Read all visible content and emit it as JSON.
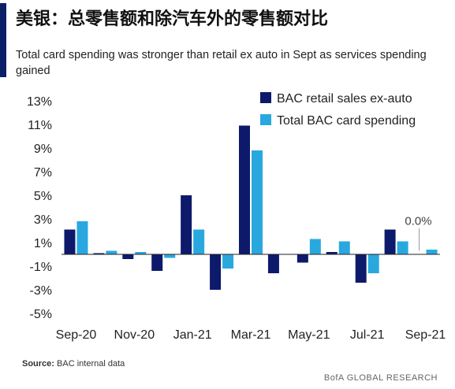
{
  "header": {
    "title": "美银：总零售额和除汽车外的零售额对比",
    "subtitle": "Total card spending was stronger than retail ex auto in Sept as services spending gained"
  },
  "footer": {
    "source_label": "Source:",
    "source_text": "BAC internal data",
    "brand": "BofA GLOBAL RESEARCH"
  },
  "colors": {
    "accent": "#0a1f66",
    "series_dark": "#0d1a6b",
    "series_light": "#29a8e0"
  },
  "chart_data": {
    "type": "bar",
    "categories": [
      "Sep-20",
      "Oct-20",
      "Nov-20",
      "Dec-20",
      "Jan-21",
      "Feb-21",
      "Mar-21",
      "Apr-21",
      "May-21",
      "Jun-21",
      "Jul-21",
      "Aug-21",
      "Sep-21"
    ],
    "x_tick_labels": [
      "Sep-20",
      "Nov-20",
      "Jan-21",
      "Mar-21",
      "May-21",
      "Jul-21",
      "Sep-21"
    ],
    "series": [
      {
        "name": "BAC retail sales ex-auto",
        "values": [
          2.1,
          0.1,
          -0.4,
          -1.4,
          5.0,
          -3.0,
          10.9,
          -1.6,
          -0.7,
          0.2,
          -2.4,
          2.1,
          0.0
        ]
      },
      {
        "name": "Total BAC card spending",
        "values": [
          2.8,
          0.3,
          0.2,
          -0.3,
          2.1,
          -1.2,
          8.8,
          0.0,
          1.3,
          1.1,
          -1.6,
          1.1,
          0.4
        ]
      }
    ],
    "ylim": [
      -5,
      13
    ],
    "y_tick_labels": [
      "13%",
      "11%",
      "9%",
      "7%",
      "5%",
      "3%",
      "1%",
      "-1%",
      "-3%",
      "-5%"
    ],
    "y_tick_values": [
      13,
      11,
      9,
      7,
      5,
      3,
      1,
      -1,
      -3,
      -5
    ],
    "annotation": "0.0%",
    "legend_position": "top-right",
    "grid": false
  }
}
